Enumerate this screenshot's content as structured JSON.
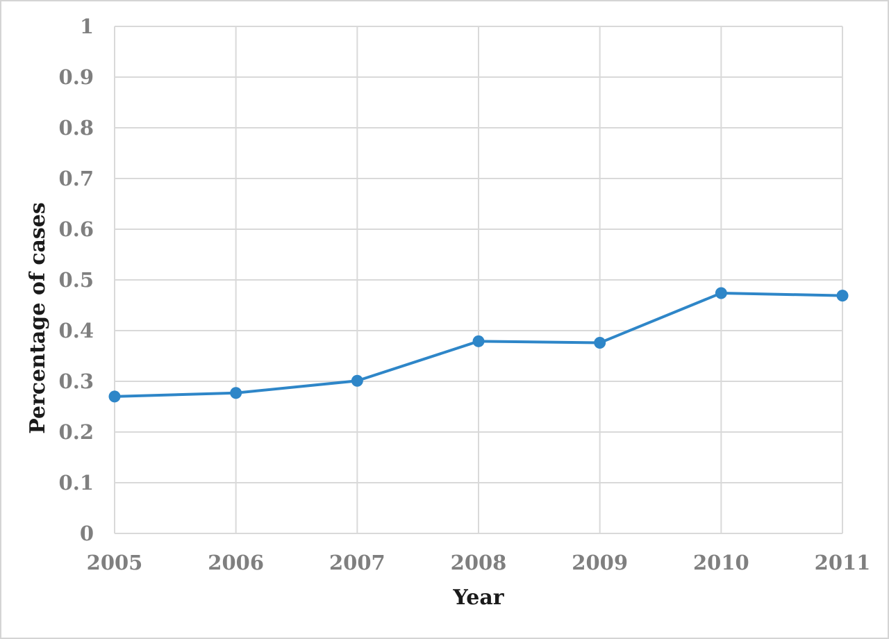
{
  "chart_data": {
    "type": "line",
    "title": "",
    "xlabel": "Year",
    "ylabel": "Percentage of  cases",
    "x": [
      "2005",
      "2006",
      "2007",
      "2008",
      "2009",
      "2010",
      "2011"
    ],
    "y_ticks": [
      "0",
      "0.1",
      "0.2",
      "0.3",
      "0.4",
      "0.5",
      "0.6",
      "0.7",
      "0.8",
      "0.9",
      "1"
    ],
    "ylim": [
      0,
      1
    ],
    "grid": true,
    "legend": "none",
    "series": [
      {
        "values": [
          0.27,
          0.277,
          0.301,
          0.379,
          0.376,
          0.474,
          0.469
        ],
        "color": "#2e86c8"
      }
    ]
  }
}
